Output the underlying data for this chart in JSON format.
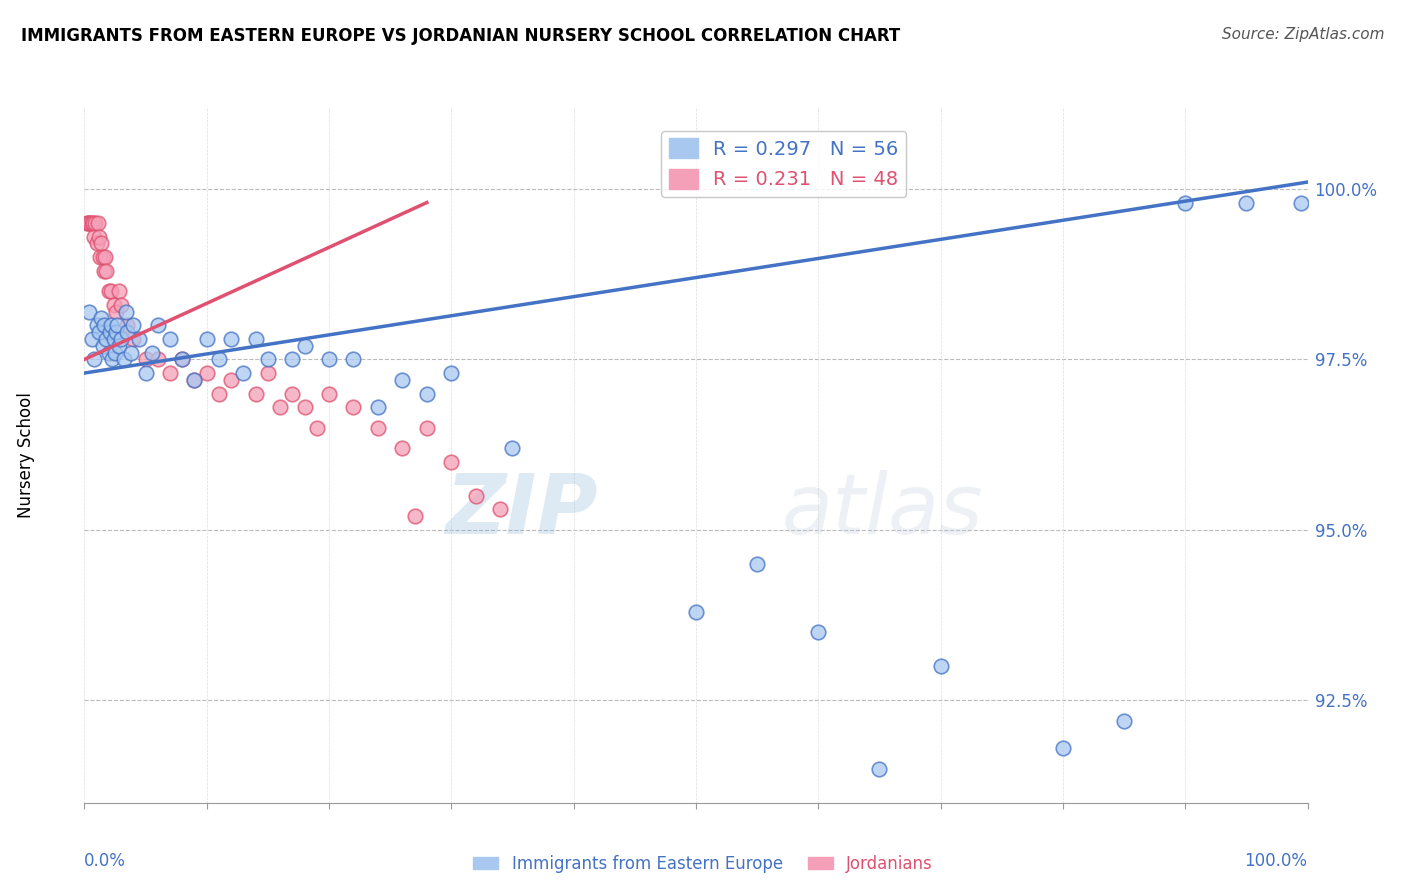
{
  "title": "IMMIGRANTS FROM EASTERN EUROPE VS JORDANIAN NURSERY SCHOOL CORRELATION CHART",
  "source": "Source: ZipAtlas.com",
  "ylabel": "Nursery School",
  "legend_blue_r": "R = 0.297",
  "legend_blue_n": "N = 56",
  "legend_pink_r": "R = 0.231",
  "legend_pink_n": "N = 48",
  "blue_color": "#A8C8F0",
  "pink_color": "#F4A0B8",
  "blue_line_color": "#4472C4",
  "pink_line_color": "#E05070",
  "watermark_zip": "ZIP",
  "watermark_atlas": "atlas",
  "blue_scatter_x": [
    0.4,
    0.6,
    0.8,
    1.0,
    1.2,
    1.4,
    1.5,
    1.6,
    1.8,
    2.0,
    2.1,
    2.2,
    2.3,
    2.4,
    2.5,
    2.6,
    2.7,
    2.8,
    3.0,
    3.2,
    3.4,
    3.5,
    3.8,
    4.0,
    4.5,
    5.0,
    5.5,
    6.0,
    7.0,
    8.0,
    9.0,
    10.0,
    11.0,
    12.0,
    13.0,
    14.0,
    15.0,
    17.0,
    18.0,
    20.0,
    22.0,
    24.0,
    26.0,
    28.0,
    30.0,
    35.0,
    50.0,
    55.0,
    60.0,
    65.0,
    70.0,
    80.0,
    85.0,
    90.0,
    95.0,
    99.5
  ],
  "blue_scatter_y": [
    98.2,
    97.8,
    97.5,
    98.0,
    97.9,
    98.1,
    97.7,
    98.0,
    97.8,
    97.6,
    97.9,
    98.0,
    97.5,
    97.8,
    97.6,
    97.9,
    98.0,
    97.7,
    97.8,
    97.5,
    98.2,
    97.9,
    97.6,
    98.0,
    97.8,
    97.3,
    97.6,
    98.0,
    97.8,
    97.5,
    97.2,
    97.8,
    97.5,
    97.8,
    97.3,
    97.8,
    97.5,
    97.5,
    97.7,
    97.5,
    97.5,
    96.8,
    97.2,
    97.0,
    97.3,
    96.2,
    93.8,
    94.5,
    93.5,
    91.5,
    93.0,
    91.8,
    92.2,
    99.8,
    99.8,
    99.8
  ],
  "pink_scatter_x": [
    0.2,
    0.3,
    0.4,
    0.5,
    0.6,
    0.7,
    0.8,
    0.9,
    1.0,
    1.1,
    1.2,
    1.3,
    1.4,
    1.5,
    1.6,
    1.7,
    1.8,
    2.0,
    2.2,
    2.4,
    2.6,
    2.8,
    3.0,
    3.5,
    4.0,
    5.0,
    6.0,
    7.0,
    8.0,
    9.0,
    10.0,
    11.0,
    12.0,
    14.0,
    15.0,
    16.0,
    17.0,
    18.0,
    19.0,
    20.0,
    22.0,
    24.0,
    26.0,
    27.0,
    28.0,
    30.0,
    32.0,
    34.0
  ],
  "pink_scatter_y": [
    99.5,
    99.5,
    99.5,
    99.5,
    99.5,
    99.5,
    99.3,
    99.5,
    99.2,
    99.5,
    99.3,
    99.0,
    99.2,
    99.0,
    98.8,
    99.0,
    98.8,
    98.5,
    98.5,
    98.3,
    98.2,
    98.5,
    98.3,
    98.0,
    97.8,
    97.5,
    97.5,
    97.3,
    97.5,
    97.2,
    97.3,
    97.0,
    97.2,
    97.0,
    97.3,
    96.8,
    97.0,
    96.8,
    96.5,
    97.0,
    96.8,
    96.5,
    96.2,
    95.2,
    96.5,
    96.0,
    95.5,
    95.3
  ],
  "blue_trendline_x": [
    0,
    100
  ],
  "blue_trendline_y": [
    97.3,
    100.1
  ],
  "pink_trendline_x": [
    0,
    28
  ],
  "pink_trendline_y": [
    97.5,
    99.8
  ],
  "xlim": [
    0,
    100
  ],
  "ylim": [
    91.0,
    101.2
  ],
  "ytick_values": [
    92.5,
    95.0,
    97.5,
    100.0
  ],
  "ygrid_values": [
    92.5,
    95.0,
    97.5,
    100.0
  ],
  "xgrid_values": [
    0,
    10,
    20,
    30,
    40,
    50,
    60,
    70,
    80,
    90,
    100
  ]
}
